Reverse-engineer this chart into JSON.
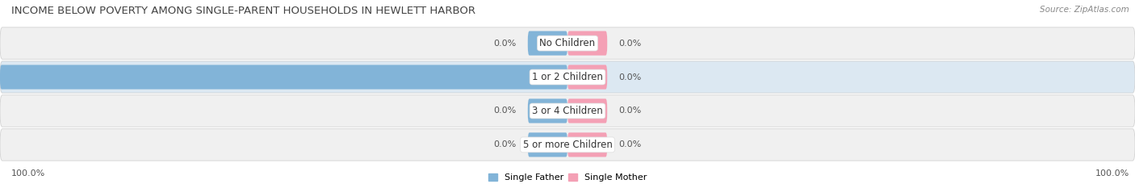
{
  "title": "INCOME BELOW POVERTY AMONG SINGLE-PARENT HOUSEHOLDS IN HEWLETT HARBOR",
  "source_text": "Source: ZipAtlas.com",
  "categories": [
    "No Children",
    "1 or 2 Children",
    "3 or 4 Children",
    "5 or more Children"
  ],
  "father_values": [
    0.0,
    100.0,
    0.0,
    0.0
  ],
  "mother_values": [
    0.0,
    0.0,
    0.0,
    0.0
  ],
  "father_color": "#82b4d8",
  "mother_color": "#f4a0b5",
  "row_bg_light": "#f0f0f0",
  "row_bg_blue": "#dce8f2",
  "label_color": "#555555",
  "title_color": "#444444",
  "legend_father": "Single Father",
  "legend_mother": "Single Mother",
  "bottom_left_label": "100.0%",
  "bottom_right_label": "100.0%",
  "bg_color": "#ffffff",
  "title_fontsize": 9.5,
  "label_fontsize": 8,
  "category_fontsize": 8.5,
  "source_fontsize": 7.5
}
